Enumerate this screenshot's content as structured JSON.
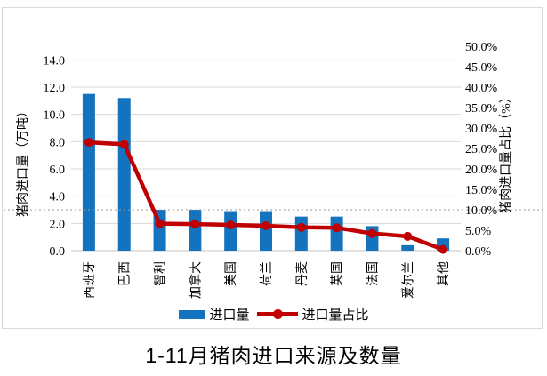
{
  "page": {
    "caption": "1-11月猪肉进口来源及数量"
  },
  "chart_data": {
    "type": "bar",
    "title": "1-11月猪肉进口来源及数量",
    "categories": [
      "西班牙",
      "巴西",
      "智利",
      "加拿大",
      "美国",
      "荷兰",
      "丹麦",
      "英国",
      "法国",
      "爱尔兰",
      "其他"
    ],
    "series": [
      {
        "name": "进口量",
        "type": "bar",
        "axis": "left",
        "unit": "万吨",
        "values": [
          11.5,
          11.2,
          3.0,
          3.0,
          2.9,
          2.9,
          2.5,
          2.5,
          1.8,
          0.4,
          0.9
        ]
      },
      {
        "name": "进口量占比",
        "type": "line",
        "axis": "right",
        "unit": "%",
        "values": [
          26.5,
          26.0,
          6.6,
          6.5,
          6.3,
          6.1,
          5.7,
          5.6,
          4.2,
          3.5,
          0.3
        ]
      }
    ],
    "left_axis": {
      "title": "猪肉进口量（万吨）",
      "min": 0,
      "max": 15,
      "tick_step": 2,
      "tick_labels": [
        "0.0",
        "2.0",
        "4.0",
        "6.0",
        "8.0",
        "10.0",
        "12.0",
        "14.0"
      ]
    },
    "right_axis": {
      "title": "猪肉进口量占比（%）",
      "min": 0,
      "max": 50,
      "tick_step": 5,
      "tick_labels": [
        "0.0%",
        "5.0%",
        "10.0%",
        "15.0%",
        "20.0%",
        "25.0%",
        "30.0%",
        "35.0%",
        "40.0%",
        "45.0%",
        "50.0%"
      ]
    },
    "reference_line": {
      "axis": "right",
      "value": 10.0,
      "style": "dotted"
    },
    "legend": {
      "position": "bottom",
      "entries": [
        "进口量",
        "进口量占比"
      ]
    },
    "grid": true
  },
  "colors": {
    "bar": "#1473BE",
    "line": "#C00000",
    "grid": "#D9D9D9",
    "axis_line": "#C6C6C6",
    "frame_border": "#D9D9D9",
    "reference": "#9B9B9B",
    "text": "#000000"
  }
}
